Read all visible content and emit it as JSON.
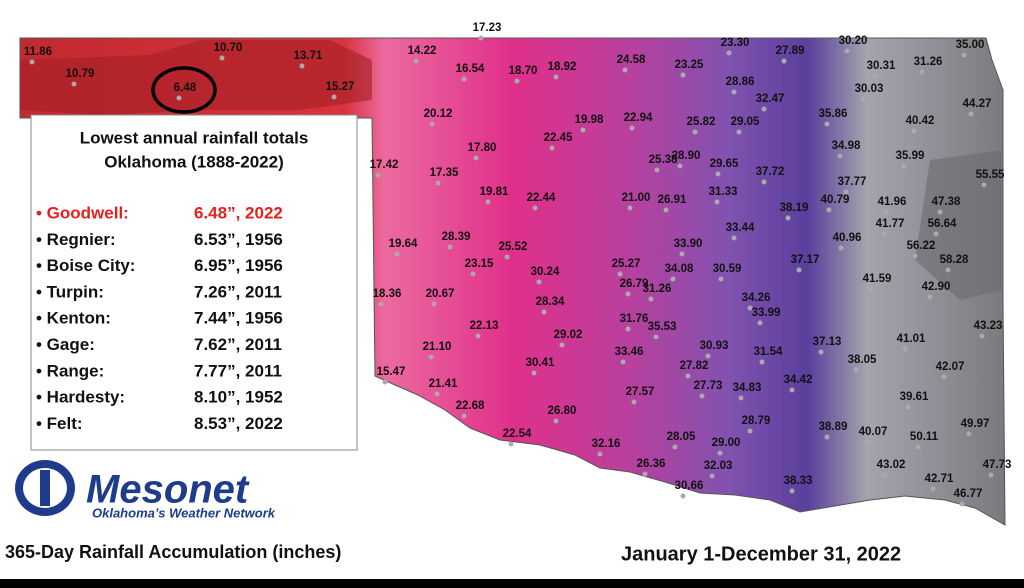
{
  "station_totals": [
    "17.23",
    "11.86",
    "10.79",
    "10.70",
    "13.71",
    "15.27",
    "6.48",
    "14.22",
    "16.54",
    "18.70",
    "18.92",
    "24.58",
    "23.30",
    "23.25",
    "27.89",
    "30.20",
    "35.00",
    "30.31",
    "31.26",
    "28.86",
    "30.03",
    "44.27",
    "20.12",
    "32.47",
    "35.86",
    "40.42",
    "22.45",
    "19.98",
    "22.94",
    "25.82",
    "29.05",
    "17.80",
    "34.98",
    "35.99",
    "28.90",
    "25.38",
    "29.65",
    "17.42",
    "17.35",
    "37.72",
    "37.77",
    "55.55",
    "19.81",
    "22.44",
    "21.00",
    "26.91",
    "31.33",
    "38.19",
    "40.79",
    "41.96",
    "47.38",
    "41.77",
    "56.64",
    "19.64",
    "28.39",
    "25.52",
    "33.44",
    "40.96",
    "56.22",
    "33.90",
    "58.28",
    "23.15",
    "30.24",
    "25.27",
    "34.08",
    "30.59",
    "37.17",
    "41.59",
    "42.90",
    "26.79",
    "31.26",
    "18.36",
    "20.67",
    "28.34",
    "34.26",
    "22.13",
    "31.76",
    "35.53",
    "33.99",
    "43.23",
    "29.02",
    "37.13",
    "41.01",
    "21.10",
    "33.46",
    "30.93",
    "31.54",
    "38.05",
    "15.47",
    "30.41",
    "27.82",
    "42.07",
    "21.41",
    "27.57",
    "27.73",
    "34.83",
    "34.42",
    "39.61",
    "22.68",
    "26.80",
    "28.79",
    "38.89",
    "40.07",
    "50.11",
    "49.97",
    "22.54",
    "28.05",
    "29.00",
    "32.16",
    "26.36",
    "32.03",
    "43.02",
    "47.73",
    "38.33",
    "42.71",
    "30.66",
    "46.77"
  ],
  "legend": {
    "title": [
      "Lowest annual rainfall totals",
      "Oklahoma (1888-2022)"
    ],
    "entries": [
      {
        "name": "• Goodwell:",
        "value": "6.48”, 2022"
      },
      {
        "name": "• Regnier:",
        "value": "6.53”, 1956"
      },
      {
        "name": "• Boise City:",
        "value": "6.95”, 1956"
      },
      {
        "name": "• Turpin:",
        "value": "7.26”, 2011"
      },
      {
        "name": "• Kenton:",
        "value": "7.44”, 1956"
      },
      {
        "name": "• Gage:",
        "value": "7.62”, 2011"
      },
      {
        "name": "• Range:",
        "value": "7.77”, 2011"
      },
      {
        "name": "• Hardesty:",
        "value": "8.10”, 1952"
      },
      {
        "name": "• Felt:",
        "value": "8.53”, 2022"
      }
    ]
  },
  "logo": {
    "name": "Mesonet",
    "tagline": "Oklahoma’s Weather Network"
  },
  "caption": "365-Day Rainfall Accumulation (inches)",
  "date_range": "January 1-December 31, 2022"
}
